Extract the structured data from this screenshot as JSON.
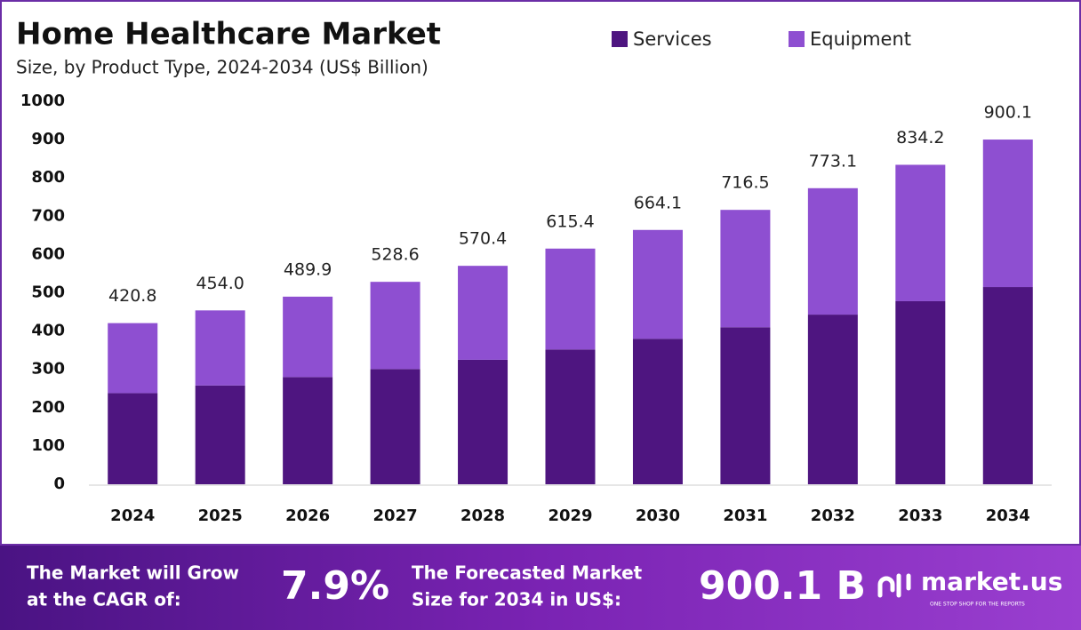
{
  "chart_data": {
    "type": "stacked_bar",
    "title": "Home Healthcare Market",
    "subtitle": "Size, by Product Type, 2024-2034 (US$ Billion)",
    "categories": [
      "2024",
      "2025",
      "2026",
      "2027",
      "2028",
      "2029",
      "2030",
      "2031",
      "2032",
      "2033",
      "2034"
    ],
    "series": [
      {
        "name": "Services",
        "color": "#4e1580",
        "values": [
          238,
          258,
          280,
          301,
          325,
          352,
          380,
          410,
          443,
          478,
          515
        ]
      },
      {
        "name": "Equipment",
        "color": "#8e4fd1",
        "values": [
          182.8,
          196,
          209.9,
          227.6,
          245.4,
          263.4,
          284.1,
          306.5,
          330.1,
          356.2,
          385.1
        ]
      }
    ],
    "totals": {
      "values": [
        420.8,
        454,
        489.9,
        528.6,
        570.4,
        615.4,
        664.1,
        716.5,
        773.1,
        834.2,
        900.1
      ],
      "value_labels": [
        "420.8",
        "454.0",
        "489.9",
        "528.6",
        "570.4",
        "615.4",
        "664.1",
        "716.5",
        "773.1",
        "834.2",
        "900.1"
      ]
    },
    "ylim": [
      0,
      1000
    ],
    "yticks": [
      0,
      100,
      200,
      300,
      400,
      500,
      600,
      700,
      800,
      900,
      1000
    ],
    "grid": false
  },
  "footer": {
    "cagr_text": [
      "The Market will Grow",
      "at the CAGR of:"
    ],
    "cagr": "7.9%",
    "forecast_text": [
      "The Forecasted Market",
      "Size for 2034 in US$:"
    ],
    "forecast": "900.1 B",
    "logo": "market.us",
    "tagline": "ONE STOP SHOP FOR THE REPORTS"
  }
}
